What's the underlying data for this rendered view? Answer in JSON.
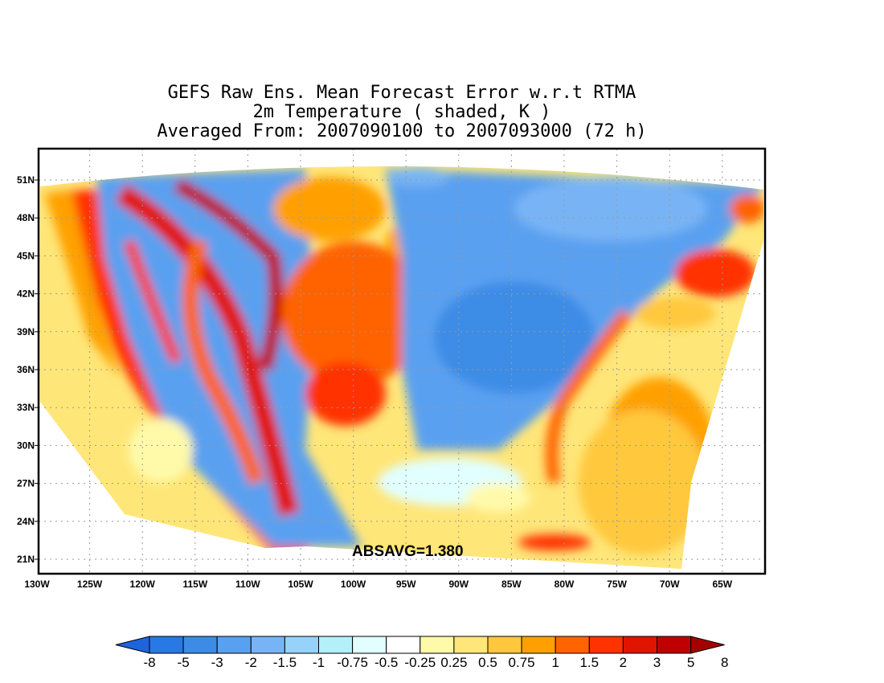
{
  "title": {
    "line1": "GEFS Raw Ens. Mean Forecast Error w.r.t RTMA",
    "line2": "2m Temperature ( shaded, K )",
    "line3": "Averaged From: 2007090100 to 2007093000 (72 h)"
  },
  "stat": "ABSAVG=1.380",
  "lat_labels": [
    "51N",
    "48N",
    "45N",
    "42N",
    "39N",
    "36N",
    "33N",
    "30N",
    "27N",
    "24N",
    "21N"
  ],
  "lon_labels": [
    "130W",
    "125W",
    "120W",
    "115W",
    "110W",
    "105W",
    "100W",
    "95W",
    "90W",
    "85W",
    "80W",
    "75W",
    "70W",
    "65W"
  ],
  "colorbar": {
    "levels": [
      "-8",
      "-5",
      "-3",
      "-2",
      "-1.5",
      "-1",
      "-0.75",
      "-0.5",
      "-0.25",
      "0.25",
      "0.5",
      "0.75",
      "1",
      "1.5",
      "2",
      "3",
      "5",
      "8"
    ],
    "colors": [
      "#1e64dc",
      "#2878e6",
      "#3c8ce6",
      "#5aa0f0",
      "#78b4f5",
      "#96d2fa",
      "#b4f0fa",
      "#e1ffff",
      "#ffffff",
      "#fffaaa",
      "#ffe678",
      "#ffc83c",
      "#ffa000",
      "#ff6400",
      "#ff3200",
      "#e11400",
      "#c00000",
      "#a50000"
    ]
  },
  "colors": {
    "ocean_pacific_warm": "#ff6400",
    "cold_east": "#5aa0f0",
    "warm_plains": "#ff6400",
    "atlantic_warm": "#ffc83c"
  }
}
